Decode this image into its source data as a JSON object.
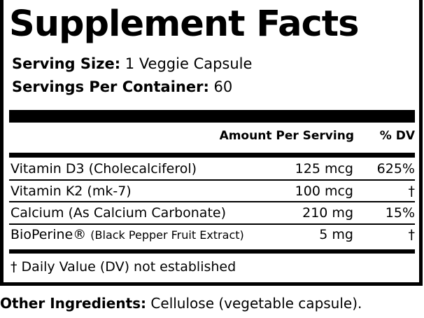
{
  "title": "Supplement Facts",
  "serving_size": {
    "label": "Serving Size:",
    "value": "1 Veggie Capsule"
  },
  "servings_per_container": {
    "label": "Servings Per Container:",
    "value": "60"
  },
  "table": {
    "headers": {
      "amount": "Amount Per Serving",
      "dv": "% DV"
    },
    "rows": [
      {
        "name": "Vitamin D3 (Cholecalciferol)",
        "amount": "125 mcg",
        "dv": "625%"
      },
      {
        "name": "Vitamin K2 (mk-7)",
        "amount": "100 mcg",
        "dv": "†"
      },
      {
        "name": "Calcium (As Calcium Carbonate)",
        "amount": "210 mg",
        "dv": "15%"
      },
      {
        "name": "BioPerine®",
        "name_detail": "(Black Pepper Fruit Extract)",
        "amount": "5 mg",
        "dv": "†"
      }
    ]
  },
  "footnote": "† Daily Value (DV) not established",
  "other_ingredients": {
    "label": "Other Ingredients:",
    "value": "Cellulose (vegetable capsule)."
  }
}
